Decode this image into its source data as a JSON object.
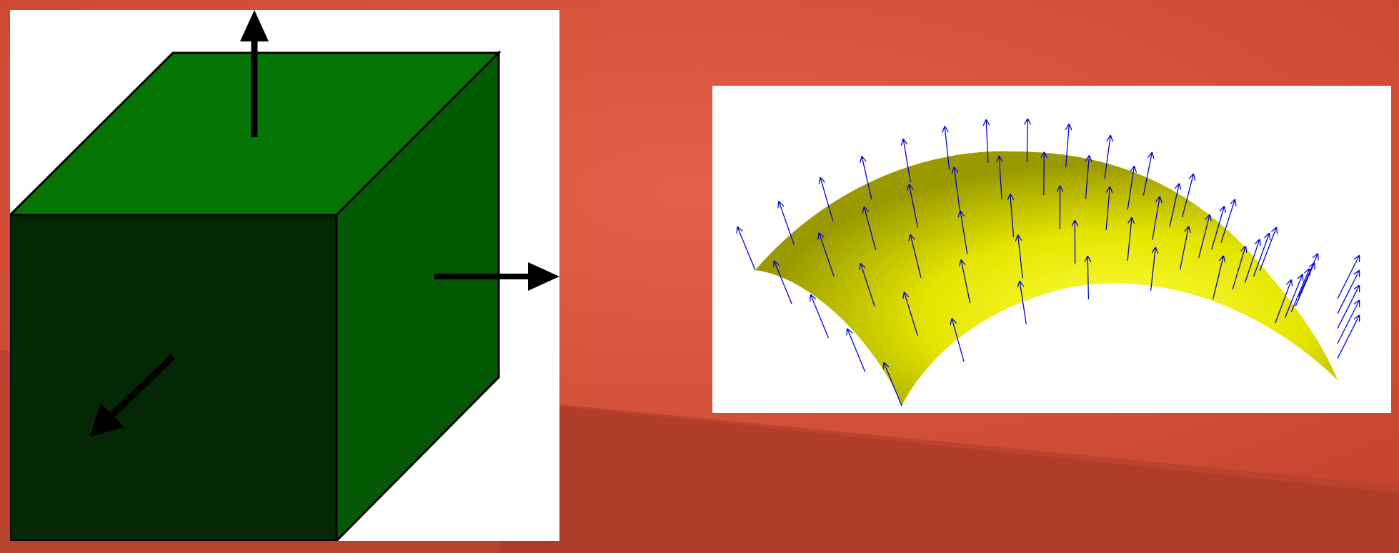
{
  "slide": {
    "background_colors": [
      "#c9482f",
      "#e05d43",
      "#b84330",
      "#a53a27"
    ]
  },
  "cube_figure": {
    "face_colors": {
      "top": "#057505",
      "front": "#032803",
      "side": "#045a04"
    },
    "arrow_color": "#000000",
    "normals": [
      "top-normal-arrow",
      "side-normal-arrow",
      "front-normal-arrow"
    ]
  },
  "surface_figure": {
    "surface_color": "#e8e800",
    "vector_color": "#0000dd",
    "normals_count_rows": 5
  }
}
